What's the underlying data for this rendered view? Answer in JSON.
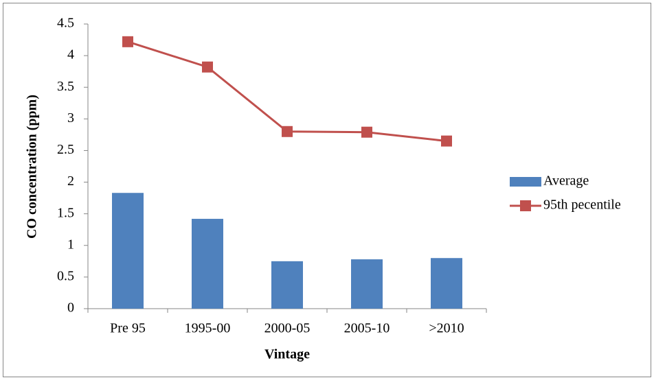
{
  "chart_data": {
    "type": "combo",
    "x_label": "Vintage",
    "y_label": "CO concentration (ppm)",
    "categories": [
      "Pre 95",
      "1995-00",
      "2000-05",
      "2005-10",
      ">2010"
    ],
    "series": [
      {
        "name": "Average",
        "type": "bar",
        "color": "#4f81bd",
        "values": [
          1.83,
          1.42,
          0.75,
          0.78,
          0.8
        ]
      },
      {
        "name": "95th pecentile",
        "type": "line",
        "color": "#c0504d",
        "values": [
          4.22,
          3.82,
          2.8,
          2.79,
          2.65
        ]
      }
    ],
    "ylim": [
      0,
      4.5
    ],
    "yticks": [
      0,
      0.5,
      1,
      1.5,
      2,
      2.5,
      3,
      3.5,
      4,
      4.5
    ],
    "grid": false,
    "legend": "right"
  }
}
